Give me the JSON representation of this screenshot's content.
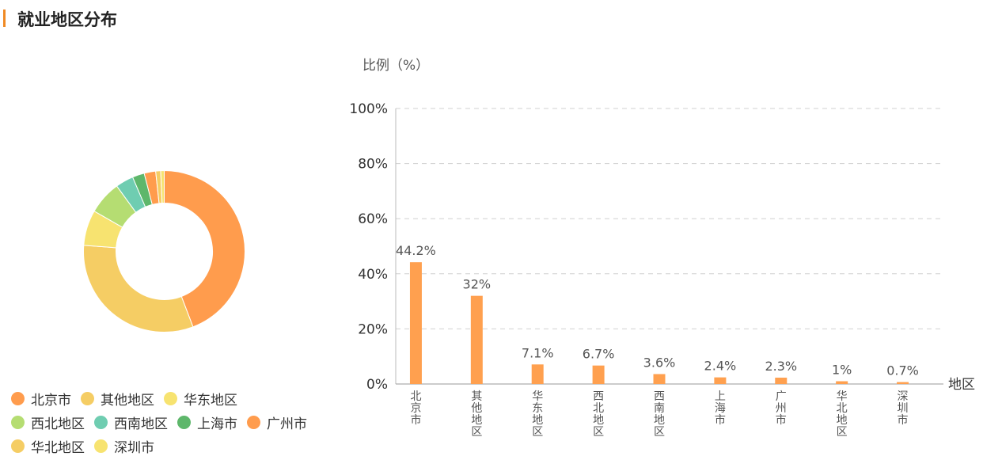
{
  "header": {
    "title": "就业地区分布"
  },
  "colors": {
    "accent": "#f08a24",
    "bar": "#ffa04f",
    "grid": "#d0d0d0",
    "axis": "#999999"
  },
  "chart_data": [
    {
      "type": "pie",
      "variant": "donut",
      "legend_position": "bottom-left",
      "slices": [
        {
          "name": "北京市",
          "value": 44.2,
          "color": "#ff9c4d"
        },
        {
          "name": "其他地区",
          "value": 32,
          "color": "#f5cd64"
        },
        {
          "name": "华东地区",
          "value": 7.1,
          "color": "#f7e370"
        },
        {
          "name": "西北地区",
          "value": 6.7,
          "color": "#b5dd72"
        },
        {
          "name": "西南地区",
          "value": 3.6,
          "color": "#6fcdb1"
        },
        {
          "name": "上海市",
          "value": 2.4,
          "color": "#5eb76b"
        },
        {
          "name": "广州市",
          "value": 2.3,
          "color": "#ff9c4d"
        },
        {
          "name": "华北地区",
          "value": 1,
          "color": "#f5cd64"
        },
        {
          "name": "深圳市",
          "value": 0.7,
          "color": "#f7e370"
        }
      ]
    },
    {
      "type": "bar",
      "ylabel": "比例（%）",
      "xlabel": "地区",
      "ylim": [
        0,
        100
      ],
      "grid": true,
      "y_ticks": [
        0,
        20,
        40,
        60,
        80,
        100
      ],
      "y_tick_labels": [
        "0%",
        "20%",
        "40%",
        "60%",
        "80%",
        "100%"
      ],
      "categories": [
        "北京市",
        "其他地区",
        "华东地区",
        "西北地区",
        "西南地区",
        "上海市",
        "广州市",
        "华北地区",
        "深圳市"
      ],
      "values": [
        44.2,
        32,
        7.1,
        6.7,
        3.6,
        2.4,
        2.3,
        1,
        0.7
      ],
      "data_labels": [
        "44.2%",
        "32%",
        "7.1%",
        "6.7%",
        "3.6%",
        "2.4%",
        "2.3%",
        "1%",
        "0.7%"
      ]
    }
  ]
}
